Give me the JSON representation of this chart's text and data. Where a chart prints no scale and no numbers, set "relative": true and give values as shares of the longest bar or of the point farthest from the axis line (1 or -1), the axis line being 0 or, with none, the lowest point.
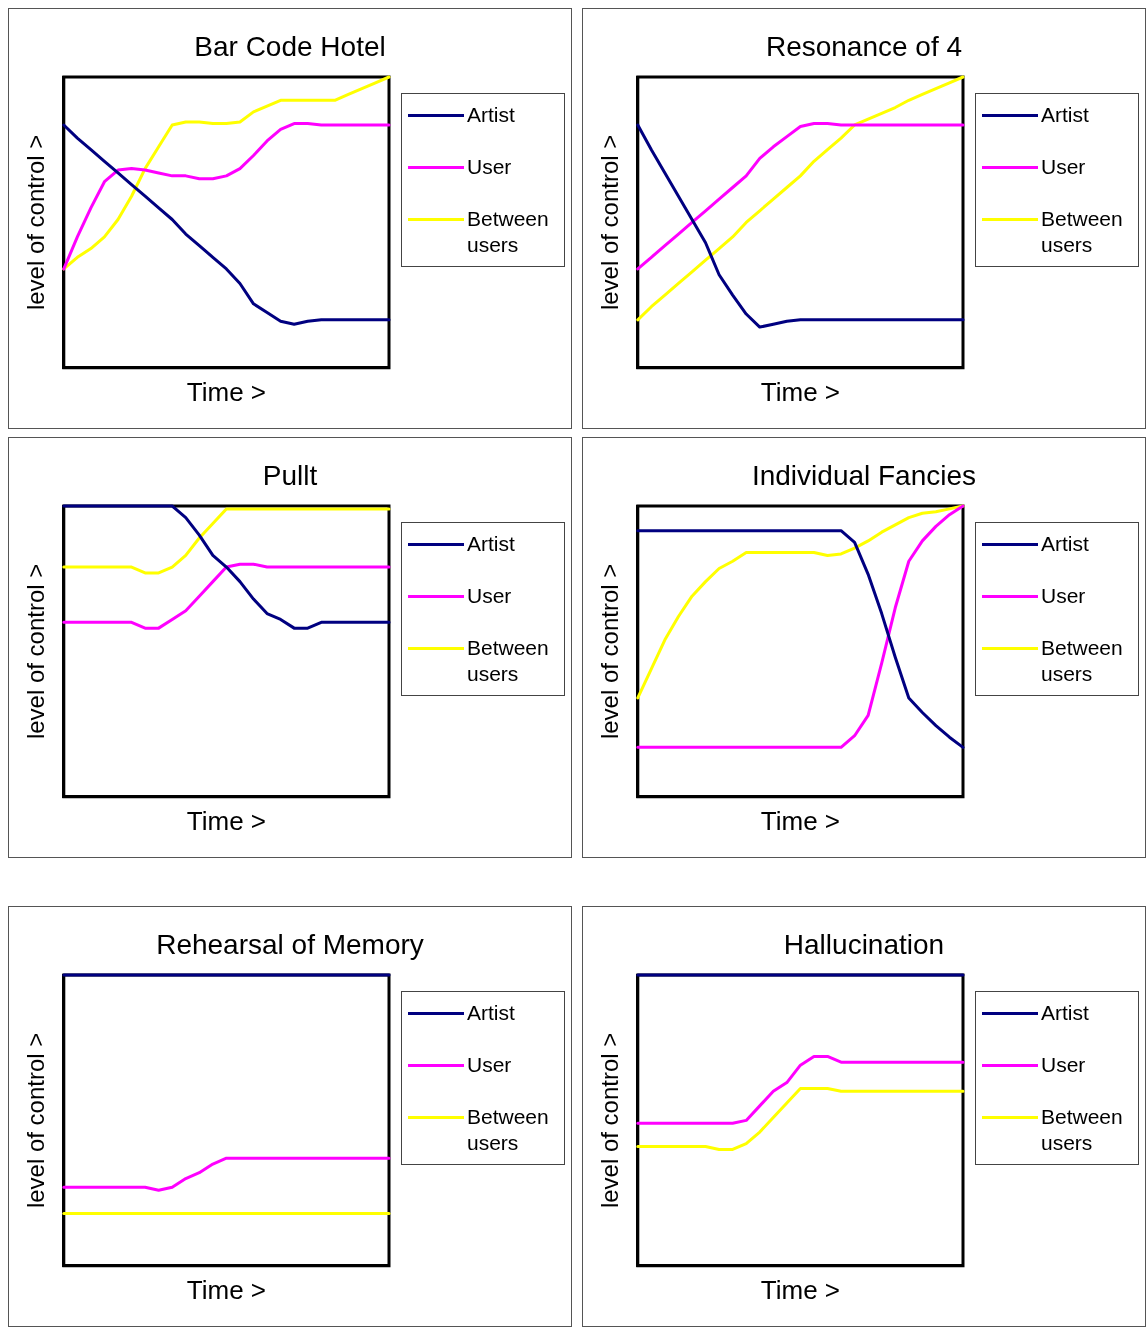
{
  "chart_data": [
    {
      "type": "line",
      "title": "Bar Code Hotel",
      "xlabel": "Time >",
      "ylabel": "level of control >",
      "relative": true,
      "legend": "right",
      "categories": [
        null,
        null,
        null,
        null,
        null,
        null,
        null,
        null,
        null,
        null,
        null,
        null,
        null,
        null,
        null,
        null,
        null,
        null,
        null,
        null,
        null,
        null,
        null,
        null,
        null
      ],
      "series": [
        {
          "name": "Artist",
          "color": "#000080",
          "values": [
            0.835,
            0.79,
            0.75,
            0.71,
            0.67,
            0.63,
            0.59,
            0.55,
            0.51,
            0.46,
            0.42,
            0.38,
            0.34,
            0.29,
            0.22,
            0.19,
            0.16,
            0.15,
            0.16,
            0.165,
            0.165,
            0.165,
            0.165,
            0.165,
            0.165
          ]
        },
        {
          "name": "User",
          "color": "#ff00ff",
          "values": [
            0.34,
            0.45,
            0.55,
            0.64,
            0.68,
            0.685,
            0.68,
            0.67,
            0.66,
            0.66,
            0.65,
            0.65,
            0.66,
            0.685,
            0.73,
            0.78,
            0.82,
            0.84,
            0.84,
            0.835,
            0.835,
            0.835,
            0.835,
            0.835,
            0.835
          ]
        },
        {
          "name": "Between users",
          "color": "#ffff00",
          "values": [
            0.34,
            0.38,
            0.41,
            0.45,
            0.51,
            0.59,
            0.685,
            0.76,
            0.835,
            0.845,
            0.845,
            0.84,
            0.84,
            0.845,
            0.88,
            0.9,
            0.92,
            0.92,
            0.92,
            0.92,
            0.92,
            0.94,
            0.96,
            0.98,
            1
          ]
        }
      ]
    },
    {
      "type": "line",
      "title": "Resonance of 4",
      "xlabel": "Time >",
      "ylabel": "level of control >",
      "relative": true,
      "legend": "right",
      "categories": [
        null,
        null,
        null,
        null,
        null,
        null,
        null,
        null,
        null,
        null,
        null,
        null,
        null,
        null,
        null,
        null,
        null,
        null,
        null,
        null,
        null,
        null,
        null,
        null,
        null
      ],
      "series": [
        {
          "name": "Artist",
          "color": "#000080",
          "values": [
            0.835,
            0.75,
            0.67,
            0.59,
            0.51,
            0.43,
            0.32,
            0.25,
            0.185,
            0.14,
            0.15,
            0.16,
            0.165,
            0.165,
            0.165,
            0.165,
            0.165,
            0.165,
            0.165,
            0.165,
            0.165,
            0.165,
            0.165,
            0.165,
            0.165
          ]
        },
        {
          "name": "User",
          "color": "#ff00ff",
          "values": [
            0.34,
            0.38,
            0.42,
            0.46,
            0.5,
            0.54,
            0.58,
            0.62,
            0.66,
            0.72,
            0.76,
            0.795,
            0.83,
            0.84,
            0.84,
            0.835,
            0.835,
            0.835,
            0.835,
            0.835,
            0.835,
            0.835,
            0.835,
            0.835,
            0.835
          ]
        },
        {
          "name": "Between users",
          "color": "#ffff00",
          "values": [
            0.165,
            0.21,
            0.25,
            0.29,
            0.33,
            0.37,
            0.41,
            0.45,
            0.5,
            0.54,
            0.58,
            0.62,
            0.66,
            0.71,
            0.75,
            0.79,
            0.835,
            0.855,
            0.875,
            0.895,
            0.92,
            0.94,
            0.96,
            0.98,
            1
          ]
        }
      ]
    },
    {
      "type": "line",
      "title": "Pullt",
      "xlabel": "Time >",
      "ylabel": "level of control >",
      "relative": true,
      "legend": "right",
      "categories": [
        null,
        null,
        null,
        null,
        null,
        null,
        null,
        null,
        null,
        null,
        null,
        null,
        null,
        null,
        null,
        null,
        null,
        null,
        null,
        null,
        null,
        null,
        null,
        null,
        null
      ],
      "series": [
        {
          "name": "Artist",
          "color": "#000080",
          "values": [
            1,
            1,
            1,
            1,
            1,
            1,
            1,
            1,
            1,
            0.96,
            0.9,
            0.83,
            0.79,
            0.74,
            0.68,
            0.63,
            0.61,
            0.58,
            0.58,
            0.6,
            0.6,
            0.6,
            0.6,
            0.6,
            0.6
          ]
        },
        {
          "name": "User",
          "color": "#ff00ff",
          "values": [
            0.6,
            0.6,
            0.6,
            0.6,
            0.6,
            0.6,
            0.58,
            0.58,
            0.61,
            0.64,
            0.69,
            0.74,
            0.79,
            0.8,
            0.8,
            0.79,
            0.79,
            0.79,
            0.79,
            0.79,
            0.79,
            0.79,
            0.79,
            0.79,
            0.79
          ]
        },
        {
          "name": "Between users",
          "color": "#ffff00",
          "values": [
            0.79,
            0.79,
            0.79,
            0.79,
            0.79,
            0.79,
            0.77,
            0.77,
            0.79,
            0.83,
            0.89,
            0.94,
            0.99,
            0.99,
            0.99,
            0.99,
            0.99,
            0.99,
            0.99,
            0.99,
            0.99,
            0.99,
            0.99,
            0.99,
            0.99
          ]
        }
      ]
    },
    {
      "type": "line",
      "title": "Individual Fancies",
      "xlabel": "Time >",
      "ylabel": "level of control >",
      "relative": true,
      "legend": "right",
      "categories": [
        null,
        null,
        null,
        null,
        null,
        null,
        null,
        null,
        null,
        null,
        null,
        null,
        null,
        null,
        null,
        null,
        null,
        null,
        null,
        null,
        null,
        null,
        null,
        null,
        null
      ],
      "series": [
        {
          "name": "Artist",
          "color": "#000080",
          "values": [
            0.915,
            0.915,
            0.915,
            0.915,
            0.915,
            0.915,
            0.915,
            0.915,
            0.915,
            0.915,
            0.915,
            0.915,
            0.915,
            0.915,
            0.915,
            0.915,
            0.875,
            0.765,
            0.63,
            0.48,
            0.34,
            0.29,
            0.245,
            0.205,
            0.17
          ]
        },
        {
          "name": "User",
          "color": "#ff00ff",
          "values": [
            0.17,
            0.17,
            0.17,
            0.17,
            0.17,
            0.17,
            0.17,
            0.17,
            0.17,
            0.17,
            0.17,
            0.17,
            0.17,
            0.17,
            0.17,
            0.17,
            0.21,
            0.28,
            0.46,
            0.65,
            0.81,
            0.88,
            0.93,
            0.97,
            1
          ]
        },
        {
          "name": "Between users",
          "color": "#ffff00",
          "values": [
            0.34,
            0.44,
            0.54,
            0.62,
            0.69,
            0.74,
            0.785,
            0.81,
            0.84,
            0.84,
            0.84,
            0.84,
            0.84,
            0.84,
            0.83,
            0.835,
            0.855,
            0.88,
            0.91,
            0.935,
            0.96,
            0.975,
            0.98,
            0.99,
            1
          ]
        }
      ]
    },
    {
      "type": "line",
      "title": "Rehearsal of Memory",
      "xlabel": "Time >",
      "ylabel": "level of control >",
      "relative": true,
      "legend": "right",
      "categories": [
        null,
        null,
        null,
        null,
        null,
        null,
        null,
        null,
        null,
        null,
        null,
        null,
        null,
        null,
        null,
        null,
        null,
        null,
        null,
        null,
        null,
        null,
        null,
        null,
        null
      ],
      "series": [
        {
          "name": "Artist",
          "color": "#000080",
          "values": [
            1,
            1,
            1,
            1,
            1,
            1,
            1,
            1,
            1,
            1,
            1,
            1,
            1,
            1,
            1,
            1,
            1,
            1,
            1,
            1,
            1,
            1,
            1,
            1,
            1
          ]
        },
        {
          "name": "User",
          "color": "#ff00ff",
          "values": [
            0.27,
            0.27,
            0.27,
            0.27,
            0.27,
            0.27,
            0.27,
            0.26,
            0.27,
            0.3,
            0.32,
            0.35,
            0.37,
            0.37,
            0.37,
            0.37,
            0.37,
            0.37,
            0.37,
            0.37,
            0.37,
            0.37,
            0.37,
            0.37,
            0.37
          ]
        },
        {
          "name": "Between users",
          "color": "#ffff00",
          "values": [
            0.18,
            0.18,
            0.18,
            0.18,
            0.18,
            0.18,
            0.18,
            0.18,
            0.18,
            0.18,
            0.18,
            0.18,
            0.18,
            0.18,
            0.18,
            0.18,
            0.18,
            0.18,
            0.18,
            0.18,
            0.18,
            0.18,
            0.18,
            0.18,
            0.18
          ]
        }
      ]
    },
    {
      "type": "line",
      "title": "Hallucination",
      "xlabel": "Time >",
      "ylabel": "level of control >",
      "relative": true,
      "legend": "right",
      "categories": [
        null,
        null,
        null,
        null,
        null,
        null,
        null,
        null,
        null,
        null,
        null,
        null,
        null,
        null,
        null,
        null,
        null,
        null,
        null,
        null,
        null,
        null,
        null,
        null,
        null
      ],
      "series": [
        {
          "name": "Artist",
          "color": "#000080",
          "values": [
            1,
            1,
            1,
            1,
            1,
            1,
            1,
            1,
            1,
            1,
            1,
            1,
            1,
            1,
            1,
            1,
            1,
            1,
            1,
            1,
            1,
            1,
            1,
            1,
            1
          ]
        },
        {
          "name": "User",
          "color": "#ff00ff",
          "values": [
            0.49,
            0.49,
            0.49,
            0.49,
            0.49,
            0.49,
            0.49,
            0.49,
            0.5,
            0.55,
            0.6,
            0.63,
            0.69,
            0.72,
            0.72,
            0.7,
            0.7,
            0.7,
            0.7,
            0.7,
            0.7,
            0.7,
            0.7,
            0.7,
            0.7
          ]
        },
        {
          "name": "Between users",
          "color": "#ffff00",
          "values": [
            0.41,
            0.41,
            0.41,
            0.41,
            0.41,
            0.41,
            0.4,
            0.4,
            0.42,
            0.46,
            0.51,
            0.56,
            0.61,
            0.61,
            0.61,
            0.6,
            0.6,
            0.6,
            0.6,
            0.6,
            0.6,
            0.6,
            0.6,
            0.6,
            0.6
          ]
        }
      ]
    }
  ]
}
